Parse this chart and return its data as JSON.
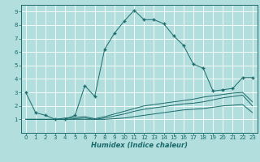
{
  "xlabel": "Humidex (Indice chaleur)",
  "ylabel": "",
  "xlim": [
    -0.5,
    23.5
  ],
  "ylim": [
    0,
    9.5
  ],
  "xticks": [
    0,
    1,
    2,
    3,
    4,
    5,
    6,
    7,
    8,
    9,
    10,
    11,
    12,
    13,
    14,
    15,
    16,
    17,
    18,
    19,
    20,
    21,
    22,
    23
  ],
  "yticks": [
    1,
    2,
    3,
    4,
    5,
    6,
    7,
    8,
    9
  ],
  "bg_color": "#b2dede",
  "grid_color": "#ffffff",
  "line_color": "#1a6b6b",
  "line1_x": [
    0,
    1,
    2,
    3,
    4,
    5,
    6,
    7,
    8,
    9,
    10,
    11,
    12,
    13,
    14,
    15,
    16,
    17,
    18,
    19,
    20,
    21,
    22,
    23
  ],
  "line1_y": [
    3.0,
    1.5,
    1.3,
    1.0,
    1.0,
    1.3,
    3.5,
    2.7,
    6.2,
    7.4,
    8.3,
    9.1,
    8.4,
    8.4,
    8.1,
    7.2,
    6.5,
    5.1,
    4.8,
    3.1,
    3.2,
    3.3,
    4.1,
    4.1
  ],
  "line2_x": [
    0,
    1,
    2,
    3,
    4,
    5,
    6,
    7,
    8,
    9,
    10,
    11,
    12,
    13,
    14,
    15,
    16,
    17,
    18,
    19,
    20,
    21,
    22,
    23
  ],
  "line2_y": [
    1.0,
    1.0,
    1.0,
    1.0,
    1.1,
    1.15,
    1.2,
    1.05,
    1.2,
    1.4,
    1.6,
    1.8,
    2.0,
    2.1,
    2.2,
    2.3,
    2.4,
    2.5,
    2.65,
    2.75,
    2.85,
    2.95,
    3.0,
    2.3
  ],
  "line3_x": [
    0,
    1,
    2,
    3,
    4,
    5,
    6,
    7,
    8,
    9,
    10,
    11,
    12,
    13,
    14,
    15,
    16,
    17,
    18,
    19,
    20,
    21,
    22,
    23
  ],
  "line3_y": [
    1.0,
    1.0,
    1.0,
    1.0,
    1.0,
    1.05,
    1.1,
    1.0,
    1.1,
    1.25,
    1.4,
    1.6,
    1.75,
    1.85,
    1.95,
    2.05,
    2.15,
    2.2,
    2.3,
    2.45,
    2.6,
    2.7,
    2.8,
    2.0
  ],
  "line4_x": [
    0,
    1,
    2,
    3,
    4,
    5,
    6,
    7,
    8,
    9,
    10,
    11,
    12,
    13,
    14,
    15,
    16,
    17,
    18,
    19,
    20,
    21,
    22,
    23
  ],
  "line4_y": [
    1.0,
    1.0,
    1.0,
    1.0,
    1.0,
    1.0,
    1.0,
    1.0,
    1.0,
    1.05,
    1.1,
    1.2,
    1.3,
    1.4,
    1.5,
    1.6,
    1.7,
    1.75,
    1.8,
    1.9,
    2.0,
    2.05,
    2.1,
    1.5
  ],
  "marker": "+",
  "markersize": 3,
  "lw": 0.7,
  "xlabel_fontsize": 6,
  "tick_fontsize": 5
}
